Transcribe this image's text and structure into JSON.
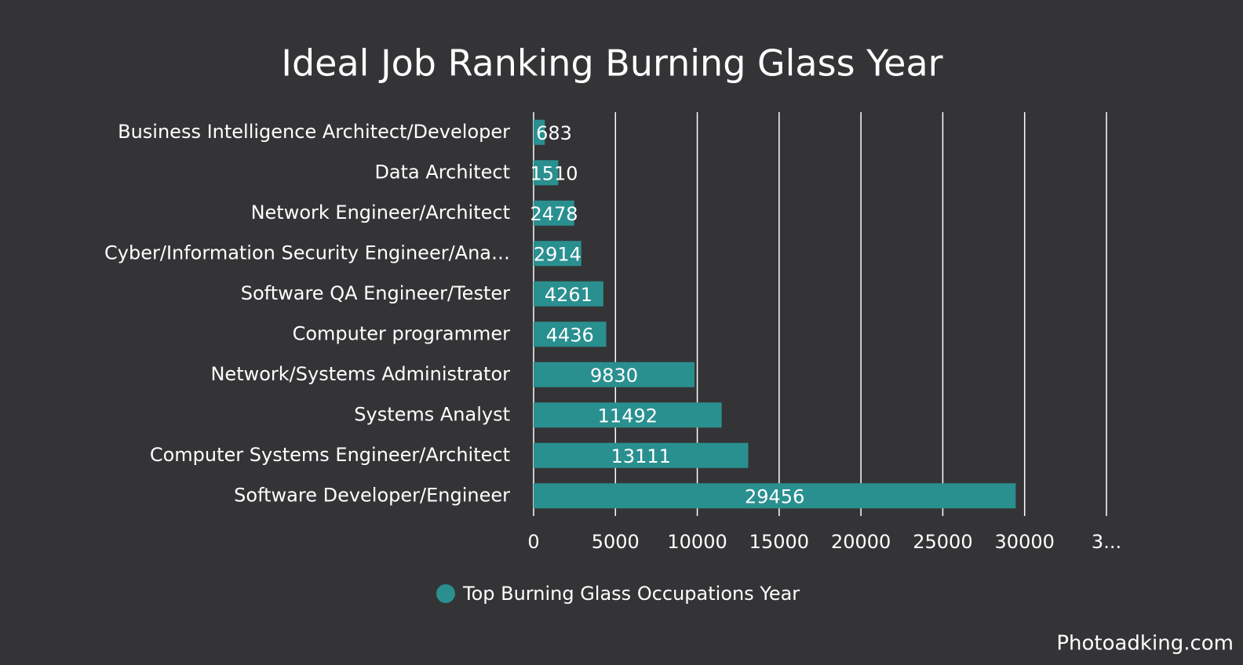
{
  "chart_data": {
    "type": "bar",
    "orientation": "horizontal",
    "title": "Ideal Job Ranking Burning Glass Year",
    "categories": [
      "Business Intelligence Architect/Developer",
      "Data Architect",
      "Network Engineer/Architect",
      "Cyber/Information Security Engineer/Ana…",
      "Software QA Engineer/Tester",
      "Computer programmer",
      "Network/Systems Administrator",
      "Systems Analyst",
      "Computer Systems Engineer/Architect",
      "Software Developer/Engineer"
    ],
    "series": [
      {
        "name": "Top Burning Glass Occupations Year",
        "color": "#2a8f8f",
        "values": [
          683,
          1510,
          2478,
          2914,
          4261,
          4436,
          9830,
          11492,
          13111,
          29456
        ]
      }
    ],
    "xlim": [
      0,
      35000
    ],
    "xticks": [
      0,
      5000,
      10000,
      15000,
      20000,
      25000,
      30000,
      {
        "value": 35000,
        "label": "3..."
      }
    ],
    "grid": true,
    "watermark": "Photoadking.com"
  }
}
